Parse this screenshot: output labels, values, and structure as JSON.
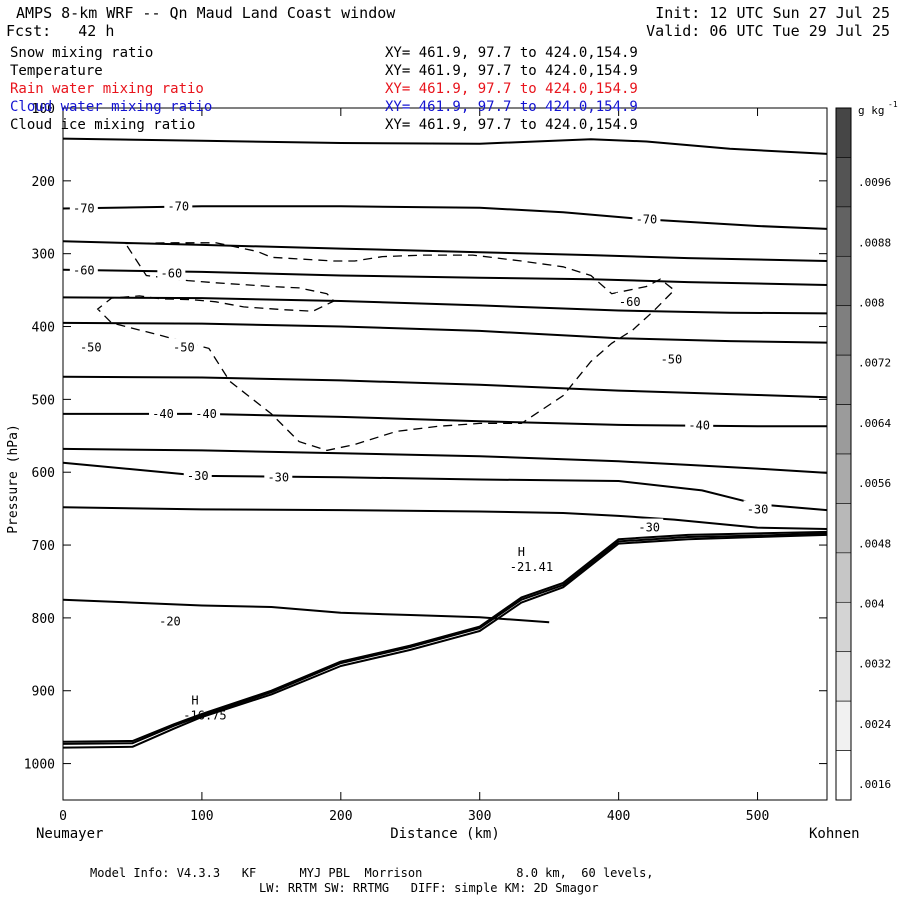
{
  "header": {
    "title": "AMPS 8-km WRF -- Qn Maud Land Coast window",
    "init": "Init: 12 UTC Sun 27 Jul 25",
    "fcst": "Fcst:   42 h",
    "valid": "Valid: 06 UTC Tue 29 Jul 25"
  },
  "legend": [
    {
      "name": "Snow mixing ratio",
      "xy": "XY= 461.9, 97.7 to 424.0,154.9",
      "color": "#000000"
    },
    {
      "name": "Temperature",
      "xy": "XY= 461.9, 97.7 to 424.0,154.9",
      "color": "#000000"
    },
    {
      "name": "Rain water mixing ratio",
      "xy": "XY= 461.9, 97.7 to 424.0,154.9",
      "color": "#e8141c"
    },
    {
      "name": "Cloud water mixing ratio",
      "xy": "XY= 461.9, 97.7 to 424.0,154.9",
      "color": "#1414d2"
    },
    {
      "name": "Cloud ice mixing ratio",
      "xy": "XY= 461.9, 97.7 to 424.0,154.9",
      "color": "#000000"
    }
  ],
  "chart_data": {
    "type": "line",
    "xlabel": "Distance (km)",
    "ylabel": "Pressure (hPa)",
    "xlim": [
      0,
      550
    ],
    "ylim": [
      1050,
      100
    ],
    "x_ticks": [
      0,
      100,
      200,
      300,
      400,
      500
    ],
    "y_ticks": [
      100,
      200,
      300,
      400,
      500,
      600,
      700,
      800,
      900,
      1000
    ],
    "x_endpoints": {
      "left": "Neumayer",
      "right": "Kohnen"
    },
    "grid": false,
    "colorbar": {
      "unit": "g kg",
      "unit_exp": "-1",
      "labels": [
        ".0096",
        ".0088",
        ".008",
        ".0072",
        ".0064",
        ".0056",
        ".0048",
        ".004",
        ".0032",
        ".0024",
        ".0016"
      ]
    },
    "isotherm_labels": [
      {
        "text": "-70",
        "x": 15,
        "p": 238
      },
      {
        "text": "-70",
        "x": 83,
        "p": 235
      },
      {
        "text": "-70",
        "x": 420,
        "p": 253
      },
      {
        "text": "-60",
        "x": 15,
        "p": 323
      },
      {
        "text": "-60",
        "x": 78,
        "p": 327
      },
      {
        "text": "-60",
        "x": 408,
        "p": 366
      },
      {
        "text": "-50",
        "x": 20,
        "p": 429
      },
      {
        "text": "-50",
        "x": 87,
        "p": 429
      },
      {
        "text": "-50",
        "x": 438,
        "p": 445
      },
      {
        "text": "-40",
        "x": 72,
        "p": 520
      },
      {
        "text": "-40",
        "x": 103,
        "p": 520
      },
      {
        "text": "-40",
        "x": 458,
        "p": 536
      },
      {
        "text": "-30",
        "x": 97,
        "p": 605
      },
      {
        "text": "-30",
        "x": 155,
        "p": 607
      },
      {
        "text": "-30",
        "x": 500,
        "p": 651
      },
      {
        "text": "-30",
        "x": 422,
        "p": 676
      },
      {
        "text": "-20",
        "x": 77,
        "p": 805
      }
    ],
    "extrema": [
      {
        "label": "H",
        "value": "-16.75",
        "x": 95,
        "p": 919
      },
      {
        "label": "H",
        "value": "-21.41",
        "x": 330,
        "p": 715
      }
    ],
    "isotherms": [
      {
        "name": "top",
        "x": [
          0,
          100,
          200,
          300,
          380,
          420,
          480,
          550
        ],
        "p": [
          142,
          145,
          148,
          149,
          143,
          146,
          156,
          163
        ]
      },
      {
        "name": "-70",
        "x": [
          0,
          100,
          200,
          300,
          360,
          420,
          500,
          550
        ],
        "p": [
          238,
          235,
          235,
          237,
          243,
          253,
          262,
          266
        ]
      },
      {
        "name": "-65",
        "x": [
          0,
          100,
          200,
          300,
          380,
          450,
          550
        ],
        "p": [
          283,
          288,
          293,
          298,
          302,
          306,
          310
        ]
      },
      {
        "name": "-60",
        "x": [
          0,
          100,
          200,
          300,
          380,
          450,
          550
        ],
        "p": [
          322,
          325,
          330,
          333,
          335,
          339,
          343
        ]
      },
      {
        "name": "-55",
        "x": [
          0,
          100,
          200,
          300,
          400,
          480,
          550
        ],
        "p": [
          360,
          361,
          365,
          371,
          378,
          381,
          382
        ]
      },
      {
        "name": "-50",
        "x": [
          0,
          100,
          200,
          300,
          400,
          480,
          550
        ],
        "p": [
          395,
          396,
          400,
          406,
          416,
          420,
          422
        ]
      },
      {
        "name": "-45",
        "x": [
          0,
          100,
          200,
          300,
          400,
          500,
          550
        ],
        "p": [
          469,
          470,
          474,
          480,
          488,
          494,
          497
        ]
      },
      {
        "name": "-40",
        "x": [
          0,
          100,
          200,
          300,
          400,
          500,
          550
        ],
        "p": [
          520,
          520,
          524,
          530,
          535,
          537,
          537
        ]
      },
      {
        "name": "-35",
        "x": [
          0,
          100,
          200,
          300,
          400,
          450,
          500,
          550
        ],
        "p": [
          568,
          570,
          574,
          578,
          585,
          590,
          595,
          601
        ]
      },
      {
        "name": "-30",
        "x": [
          0,
          100,
          200,
          300,
          400,
          460,
          500,
          550
        ],
        "p": [
          587,
          605,
          607,
          610,
          612,
          625,
          644,
          652
        ]
      },
      {
        "name": "-25",
        "x": [
          0,
          100,
          200,
          300,
          360,
          400,
          440,
          500,
          550
        ],
        "p": [
          648,
          651,
          652,
          654,
          656,
          660,
          665,
          676,
          678
        ]
      },
      {
        "name": "-20",
        "x": [
          0,
          50,
          100,
          150,
          200,
          250,
          300,
          350
        ],
        "p": [
          775,
          779,
          783,
          785,
          793,
          796,
          799,
          806
        ]
      },
      {
        "name": "terrain-1",
        "x": [
          0,
          50,
          80,
          100,
          150,
          200,
          250,
          300,
          330,
          360,
          400,
          450,
          500,
          550
        ],
        "p": [
          970,
          969,
          946,
          932,
          900,
          860,
          838,
          812,
          772,
          752,
          692,
          686,
          684,
          682
        ]
      },
      {
        "name": "terrain-2",
        "x": [
          0,
          50,
          80,
          100,
          150,
          200,
          250,
          300,
          330,
          360,
          400,
          450,
          500,
          550
        ],
        "p": [
          973,
          972,
          948,
          934,
          902,
          862,
          840,
          814,
          775,
          755,
          695,
          689,
          687,
          684
        ]
      },
      {
        "name": "terrain-3",
        "x": [
          0,
          50,
          80,
          100,
          150,
          200,
          250,
          300,
          330,
          360,
          400,
          450,
          500,
          550
        ],
        "p": [
          978,
          977,
          952,
          936,
          905,
          866,
          844,
          818,
          779,
          758,
          698,
          692,
          689,
          686
        ]
      }
    ],
    "cloud_ice_contour": {
      "x": [
        45,
        80,
        110,
        125,
        140,
        150,
        195,
        210,
        230,
        260,
        295,
        330,
        360,
        380,
        395,
        420,
        430,
        440,
        425,
        410,
        395,
        380,
        360,
        330,
        300,
        270,
        240,
        210,
        190,
        170,
        150,
        120,
        105,
        70,
        35,
        25,
        35,
        55,
        70,
        92,
        110,
        130,
        160,
        180,
        195,
        190,
        170,
        150,
        110,
        90,
        60,
        45
      ],
      "p": [
        286,
        285,
        285,
        291,
        297,
        305,
        310,
        310,
        304,
        302,
        302,
        310,
        318,
        330,
        355,
        345,
        335,
        350,
        379,
        405,
        423,
        448,
        495,
        533,
        533,
        537,
        544,
        562,
        570,
        558,
        520,
        475,
        430,
        412,
        395,
        376,
        361,
        358,
        362,
        363,
        366,
        373,
        377,
        379,
        365,
        355,
        347,
        345,
        340,
        337,
        330,
        286
      ]
    }
  },
  "footer": {
    "line1": "Model Info: V4.3.3   KF      MYJ PBL  Morrison             8.0 km,  60 levels,",
    "line2": "LW: RRTM SW: RRTMG   DIFF: simple KM: 2D Smagor"
  }
}
